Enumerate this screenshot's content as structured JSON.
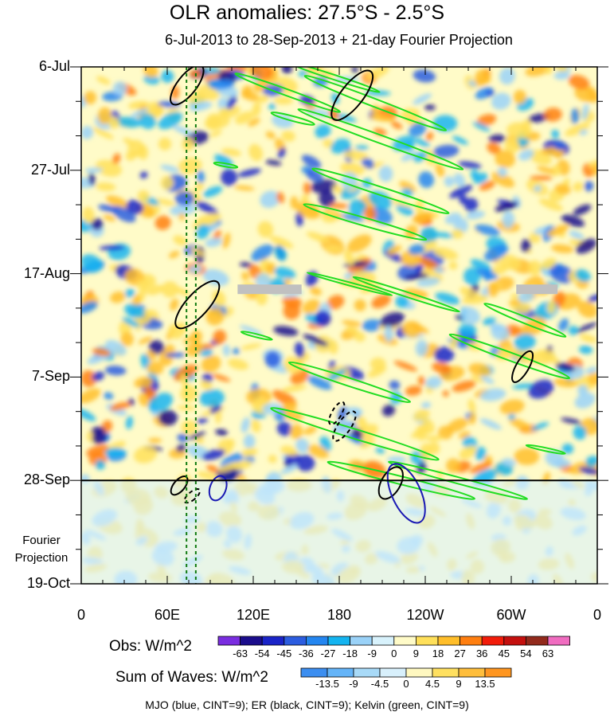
{
  "chart_data": {
    "type": "heatmap",
    "title": "OLR anomalies: 27.5°S - 2.5°S",
    "subtitle": "6-Jul-2013 to 28-Sep-2013 + 21-day Fourier Projection",
    "x_ticks": [
      "0",
      "60E",
      "120E",
      "180",
      "120W",
      "60W",
      "0"
    ],
    "x_range_deg_east": [
      0,
      360
    ],
    "y_ticks": [
      "6-Jul",
      "27-Jul",
      "17-Aug",
      "7-Sep",
      "28-Sep",
      "19-Oct"
    ],
    "y_range": [
      "6-Jul-2013",
      "19-Oct-2013"
    ],
    "observation_end": "28-Sep",
    "projection_label": "Fourier Projection",
    "obs_colorbar": {
      "title": "Obs: W/m^2",
      "levels": [
        -63,
        -54,
        -45,
        -36,
        -27,
        -18,
        -9,
        0,
        9,
        18,
        27,
        36,
        45,
        54,
        63
      ],
      "colors": [
        "#7a2de0",
        "#1b0d8c",
        "#1a24c8",
        "#2c5de0",
        "#2486f0",
        "#14b4f0",
        "#9ad2f8",
        "#d8f2fc",
        "#fffbc8",
        "#ffe05a",
        "#ffbe2a",
        "#ff7f10",
        "#f21c0a",
        "#c4100e",
        "#922a1c",
        "#f06cc0"
      ]
    },
    "wave_colorbar": {
      "title": "Sum of Waves: W/m^2",
      "levels": [
        -13.5,
        -9,
        -4.5,
        0,
        4.5,
        9,
        13.5
      ],
      "colors": [
        "#3c8ef0",
        "#64b4f8",
        "#a8daf8",
        "#d8f0fc",
        "#fff8c0",
        "#ffe060",
        "#ffbe3c",
        "#ff9620"
      ]
    },
    "wave_contours": [
      {
        "name": "MJO",
        "color": "#1a1ab4"
      },
      {
        "name": "ER",
        "color": "#000000"
      },
      {
        "name": "Kelvin",
        "color": "#22dd22"
      }
    ],
    "missing_color": "#c0c0c0",
    "footnote": "MJO (blue, CINT=9); ER (black, CINT=9); Kelvin (green, CINT=9)"
  }
}
